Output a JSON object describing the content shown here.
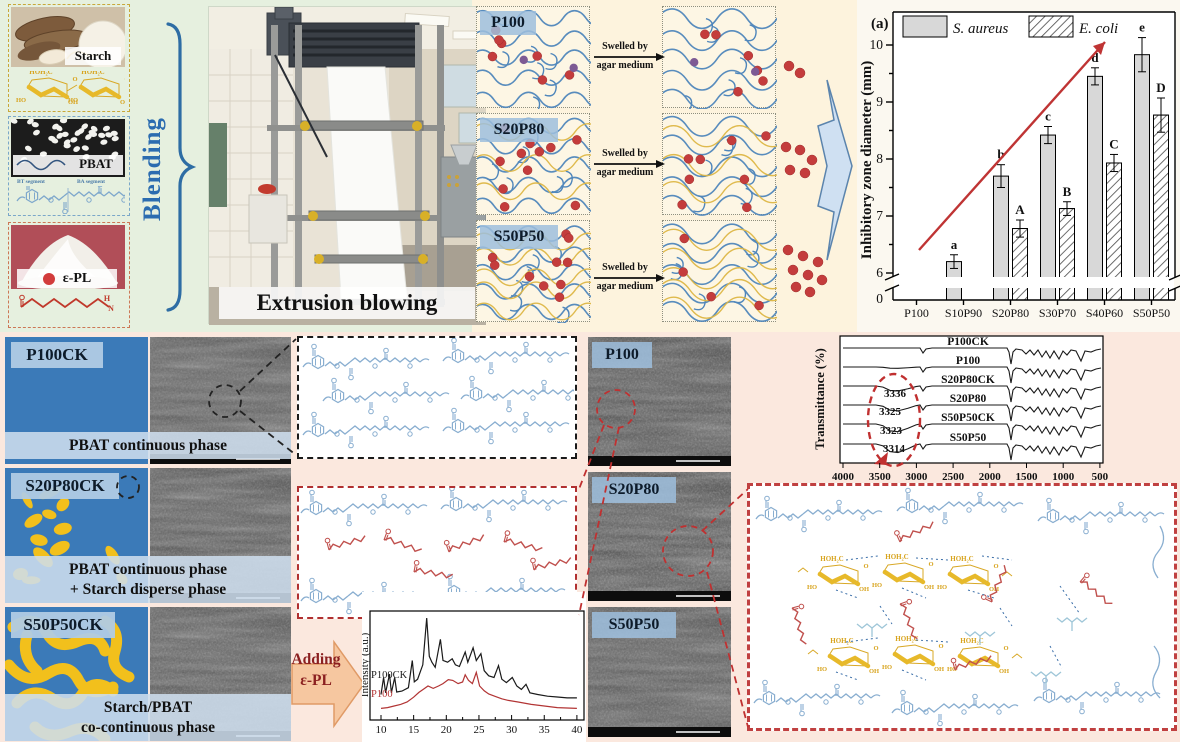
{
  "figure": {
    "materials": {
      "starch_label": "Starch",
      "pbat_label": "PBAT",
      "epl_label": "ε-PL",
      "bt_segment": "BT segment",
      "ba_segment": "BA segment"
    },
    "blending_label": "Blending",
    "extrusion_label": "Extrusion blowing",
    "network_rows": [
      {
        "label": "P100",
        "arrow1": "Swelled by",
        "arrow2": "agar medium"
      },
      {
        "label": "S20P80",
        "arrow1": "Swelled by",
        "arrow2": "agar medium"
      },
      {
        "label": "S50P50",
        "arrow1": "Swelled by",
        "arrow2": "agar medium"
      }
    ],
    "ck_rows": [
      {
        "label": "P100CK",
        "caption1": "PBAT continuous phase",
        "caption2": ""
      },
      {
        "label": "S20P80CK",
        "caption1": "PBAT continuous phase",
        "caption2": "+ Starch disperse phase"
      },
      {
        "label": "S50P50CK",
        "caption1": "Starch/PBAT",
        "caption2": "co-continuous phase"
      }
    ],
    "sem_labels": [
      "P100",
      "S20P80",
      "S50P50"
    ],
    "adding_arrow": {
      "line1": "Adding",
      "line2": "ε-PL"
    },
    "structure_glyphs": {
      "hoh2c": "HOH₂C",
      "ho": "HO",
      "oh": "OH",
      "o": "O",
      "h": "H",
      "n": "N"
    }
  },
  "chart_data": [
    {
      "id": "inhibition",
      "type": "bar",
      "panel_label": "(a)",
      "ylabel": "Inhibitory zone diameter (mm)",
      "categories": [
        "P100",
        "S10P90",
        "S20P80",
        "S30P70",
        "S40P60",
        "S50P50"
      ],
      "series": [
        {
          "name": "S. aureus",
          "style": "solid",
          "values": [
            0,
            6.2,
            7.7,
            8.42,
            9.45,
            9.83
          ],
          "errors": [
            0,
            0.12,
            0.2,
            0.15,
            0.15,
            0.3
          ],
          "letters": [
            "",
            "a",
            "b",
            "c",
            "d",
            "e"
          ]
        },
        {
          "name": "E. coli",
          "style": "hatched",
          "values": [
            0,
            0,
            6.78,
            7.13,
            7.93,
            8.77
          ],
          "errors": [
            0,
            0,
            0.15,
            0.12,
            0.15,
            0.3
          ],
          "letters": [
            "",
            "",
            "A",
            "B",
            "C",
            "D"
          ]
        }
      ],
      "yticks": [
        6,
        7,
        8,
        9,
        10
      ],
      "zero_tick": "0",
      "axis_break": true,
      "ylim": [
        6,
        10.4
      ],
      "bar_fill": "#d8d8d8",
      "trend_arrow_color": "#bf3434",
      "legend_position": "top"
    },
    {
      "id": "xrd",
      "type": "line",
      "ylabel": "Intensity (a.u.)",
      "xticks": [
        10,
        15,
        20,
        25,
        30,
        35,
        40
      ],
      "xlim": [
        9.3,
        41.5
      ],
      "series": [
        {
          "name": "P100CK",
          "color": "#1a1a1a",
          "points": [
            [
              10,
              0.1
            ],
            [
              10.4,
              0.3
            ],
            [
              10.7,
              0.12
            ],
            [
              11.3,
              0.34
            ],
            [
              11.6,
              0.12
            ],
            [
              12.1,
              0.3
            ],
            [
              12.4,
              0.13
            ],
            [
              13.2,
              0.14
            ],
            [
              14.2,
              0.18
            ],
            [
              14.8,
              0.5
            ],
            [
              15.1,
              0.25
            ],
            [
              15.6,
              0.28
            ],
            [
              16.4,
              0.45
            ],
            [
              17.0,
              1.0
            ],
            [
              17.4,
              0.55
            ],
            [
              17.8,
              0.48
            ],
            [
              18.3,
              0.42
            ],
            [
              19.1,
              0.75
            ],
            [
              19.5,
              0.5
            ],
            [
              20.2,
              0.48
            ],
            [
              20.9,
              0.52
            ],
            [
              21.4,
              0.45
            ],
            [
              22.0,
              0.43
            ],
            [
              22.9,
              0.6
            ],
            [
              23.3,
              0.48
            ],
            [
              24.1,
              0.65
            ],
            [
              24.6,
              0.5
            ],
            [
              25.3,
              0.58
            ],
            [
              25.8,
              0.38
            ],
            [
              26.5,
              0.32
            ],
            [
              27.3,
              0.3
            ],
            [
              28.0,
              0.44
            ],
            [
              28.5,
              0.28
            ],
            [
              29.2,
              0.24
            ],
            [
              30.1,
              0.3
            ],
            [
              30.8,
              0.2
            ],
            [
              31.5,
              0.16
            ],
            [
              32.2,
              0.22
            ],
            [
              32.8,
              0.12
            ],
            [
              34.0,
              0.1
            ],
            [
              35.5,
              0.08
            ],
            [
              37.0,
              0.07
            ],
            [
              38.5,
              0.06
            ],
            [
              40,
              0.06
            ]
          ]
        },
        {
          "name": "P100",
          "color": "#b23434",
          "points": [
            [
              10,
              0.02
            ],
            [
              11,
              0.03
            ],
            [
              12,
              0.05
            ],
            [
              13,
              0.07
            ],
            [
              14,
              0.1
            ],
            [
              15,
              0.16
            ],
            [
              15.8,
              0.22
            ],
            [
              16.5,
              0.26
            ],
            [
              17.2,
              0.3
            ],
            [
              18,
              0.27
            ],
            [
              18.8,
              0.3
            ],
            [
              19.5,
              0.33
            ],
            [
              20.3,
              0.38
            ],
            [
              21,
              0.37
            ],
            [
              21.8,
              0.33
            ],
            [
              22.5,
              0.35
            ],
            [
              22.9,
              0.44
            ],
            [
              23.4,
              0.37
            ],
            [
              24.0,
              0.33
            ],
            [
              24.6,
              0.47
            ],
            [
              25.1,
              0.3
            ],
            [
              25.8,
              0.24
            ],
            [
              26.5,
              0.2
            ],
            [
              27.5,
              0.17
            ],
            [
              28.5,
              0.14
            ],
            [
              29.5,
              0.12
            ],
            [
              31,
              0.1
            ],
            [
              33,
              0.07
            ],
            [
              35,
              0.05
            ],
            [
              37,
              0.03
            ],
            [
              40,
              0.02
            ]
          ]
        }
      ]
    },
    {
      "id": "ftir",
      "type": "line",
      "ylabel": "Transmittance (%)",
      "xticks": [
        4000,
        3500,
        3000,
        2500,
        2000,
        1500,
        1000,
        500
      ],
      "samples": [
        {
          "name": "P100CK",
          "oh_dip": 0
        },
        {
          "name": "P100",
          "oh_dip": 0.15
        },
        {
          "name": "S20P80CK",
          "oh_dip": 0.55
        },
        {
          "name": "S20P80",
          "oh_dip": 0.65
        },
        {
          "name": "S50P50CK",
          "oh_dip": 0.85
        },
        {
          "name": "S50P50",
          "oh_dip": 0.95
        }
      ],
      "annotations": [
        "3336",
        "3325",
        "3323",
        "3314"
      ],
      "annotation_color": "#c03030"
    }
  ]
}
